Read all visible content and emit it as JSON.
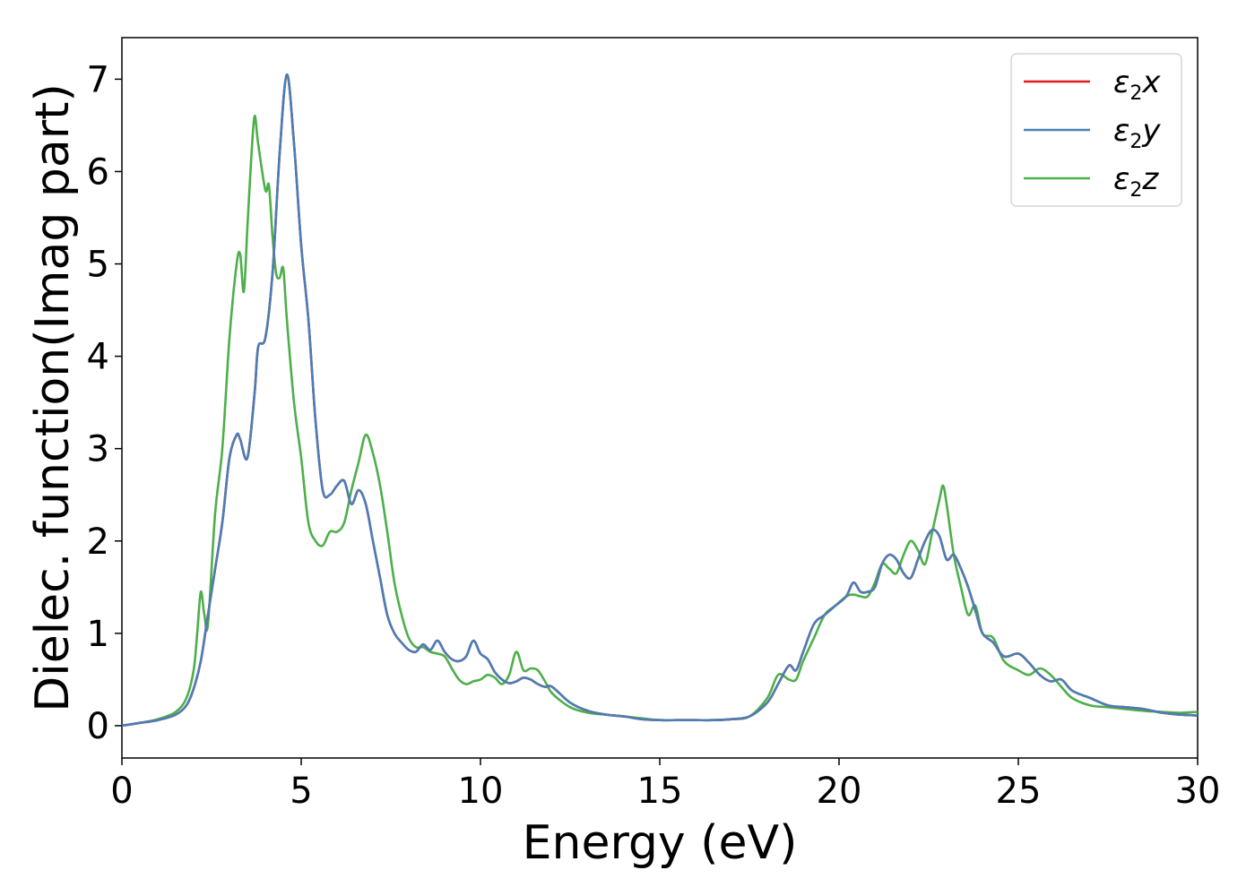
{
  "chart_data": {
    "type": "line",
    "title": "",
    "xlabel": "Energy (eV)",
    "ylabel": "Dielec. function(Imag part)",
    "xlim": [
      0,
      30
    ],
    "ylim": [
      -0.35,
      7.45
    ],
    "xticks": [
      0,
      5,
      10,
      15,
      20,
      25,
      30
    ],
    "yticks": [
      0,
      1,
      2,
      3,
      4,
      5,
      6,
      7
    ],
    "grid": false,
    "legend_position": "top-right",
    "series": [
      {
        "name": "ε2x",
        "legend": {
          "base": "ε",
          "sub": "2",
          "comp": "x"
        },
        "color": "#e41a1c",
        "x": [
          0,
          0.5,
          1,
          1.5,
          1.8,
          2,
          2.2,
          2.4,
          2.6,
          2.8,
          3,
          3.2,
          3.3,
          3.5,
          3.7,
          3.8,
          4,
          4.2,
          4.4,
          4.6,
          4.8,
          5,
          5.2,
          5.4,
          5.6,
          5.8,
          6,
          6.2,
          6.4,
          6.6,
          6.8,
          7,
          7.2,
          7.4,
          7.6,
          7.8,
          8,
          8.2,
          8.4,
          8.6,
          8.8,
          9,
          9.2,
          9.4,
          9.6,
          9.8,
          10,
          10.2,
          10.4,
          10.6,
          10.8,
          11,
          11.2,
          11.4,
          11.6,
          11.8,
          12,
          12.5,
          13,
          13.5,
          14,
          14.5,
          15,
          15.5,
          16,
          16.5,
          17,
          17.5,
          18,
          18.3,
          18.6,
          18.8,
          19,
          19.3,
          19.6,
          19.9,
          20.2,
          20.4,
          20.6,
          20.8,
          21,
          21.2,
          21.4,
          21.6,
          21.8,
          22,
          22.2,
          22.4,
          22.6,
          22.8,
          23,
          23.2,
          23.4,
          23.6,
          23.8,
          24,
          24.3,
          24.6,
          25,
          25.3,
          25.6,
          25.9,
          26.2,
          26.5,
          27,
          27.5,
          28,
          28.5,
          29,
          29.5,
          30
        ],
        "values": [
          0,
          0.03,
          0.06,
          0.12,
          0.22,
          0.4,
          0.7,
          1.2,
          1.7,
          2.2,
          2.9,
          3.15,
          3.1,
          2.9,
          3.6,
          4.1,
          4.2,
          4.9,
          6.2,
          7.05,
          6.3,
          5.2,
          4.4,
          3.3,
          2.55,
          2.5,
          2.6,
          2.65,
          2.4,
          2.55,
          2.4,
          2.0,
          1.6,
          1.2,
          1.0,
          0.9,
          0.82,
          0.8,
          0.88,
          0.82,
          0.92,
          0.8,
          0.72,
          0.7,
          0.75,
          0.92,
          0.78,
          0.72,
          0.58,
          0.5,
          0.46,
          0.48,
          0.52,
          0.5,
          0.45,
          0.42,
          0.42,
          0.25,
          0.16,
          0.12,
          0.1,
          0.07,
          0.06,
          0.06,
          0.06,
          0.06,
          0.07,
          0.1,
          0.25,
          0.45,
          0.65,
          0.6,
          0.8,
          1.1,
          1.2,
          1.3,
          1.4,
          1.55,
          1.45,
          1.45,
          1.5,
          1.75,
          1.85,
          1.8,
          1.65,
          1.6,
          1.8,
          2.0,
          2.12,
          2.05,
          1.8,
          1.85,
          1.7,
          1.5,
          1.25,
          1.0,
          0.9,
          0.75,
          0.78,
          0.68,
          0.55,
          0.48,
          0.5,
          0.38,
          0.3,
          0.22,
          0.2,
          0.18,
          0.14,
          0.12,
          0.11
        ]
      },
      {
        "name": "ε2y",
        "legend": {
          "base": "ε",
          "sub": "2",
          "comp": "y"
        },
        "color": "#4b7eb5",
        "x": [
          0,
          0.5,
          1,
          1.5,
          1.8,
          2,
          2.2,
          2.4,
          2.6,
          2.8,
          3,
          3.2,
          3.3,
          3.5,
          3.7,
          3.8,
          4,
          4.2,
          4.4,
          4.6,
          4.8,
          5,
          5.2,
          5.4,
          5.6,
          5.8,
          6,
          6.2,
          6.4,
          6.6,
          6.8,
          7,
          7.2,
          7.4,
          7.6,
          7.8,
          8,
          8.2,
          8.4,
          8.6,
          8.8,
          9,
          9.2,
          9.4,
          9.6,
          9.8,
          10,
          10.2,
          10.4,
          10.6,
          10.8,
          11,
          11.2,
          11.4,
          11.6,
          11.8,
          12,
          12.5,
          13,
          13.5,
          14,
          14.5,
          15,
          15.5,
          16,
          16.5,
          17,
          17.5,
          18,
          18.3,
          18.6,
          18.8,
          19,
          19.3,
          19.6,
          19.9,
          20.2,
          20.4,
          20.6,
          20.8,
          21,
          21.2,
          21.4,
          21.6,
          21.8,
          22,
          22.2,
          22.4,
          22.6,
          22.8,
          23,
          23.2,
          23.4,
          23.6,
          23.8,
          24,
          24.3,
          24.6,
          25,
          25.3,
          25.6,
          25.9,
          26.2,
          26.5,
          27,
          27.5,
          28,
          28.5,
          29,
          29.5,
          30
        ],
        "values": [
          0,
          0.03,
          0.06,
          0.12,
          0.22,
          0.4,
          0.7,
          1.2,
          1.7,
          2.2,
          2.9,
          3.15,
          3.1,
          2.9,
          3.6,
          4.1,
          4.2,
          4.9,
          6.2,
          7.05,
          6.3,
          5.2,
          4.4,
          3.3,
          2.55,
          2.5,
          2.6,
          2.65,
          2.4,
          2.55,
          2.4,
          2.0,
          1.6,
          1.2,
          1.0,
          0.9,
          0.82,
          0.8,
          0.88,
          0.82,
          0.92,
          0.8,
          0.72,
          0.7,
          0.75,
          0.92,
          0.78,
          0.72,
          0.58,
          0.5,
          0.46,
          0.48,
          0.52,
          0.5,
          0.45,
          0.42,
          0.42,
          0.25,
          0.16,
          0.12,
          0.1,
          0.07,
          0.06,
          0.06,
          0.06,
          0.06,
          0.07,
          0.1,
          0.25,
          0.45,
          0.65,
          0.6,
          0.8,
          1.1,
          1.2,
          1.3,
          1.4,
          1.55,
          1.45,
          1.45,
          1.5,
          1.75,
          1.85,
          1.8,
          1.65,
          1.6,
          1.8,
          2.0,
          2.12,
          2.05,
          1.8,
          1.85,
          1.7,
          1.5,
          1.25,
          1.0,
          0.9,
          0.75,
          0.78,
          0.68,
          0.55,
          0.48,
          0.5,
          0.38,
          0.3,
          0.22,
          0.2,
          0.18,
          0.14,
          0.12,
          0.11
        ]
      },
      {
        "name": "ε2z",
        "legend": {
          "base": "ε",
          "sub": "2",
          "comp": "z"
        },
        "color": "#4daf4a",
        "x": [
          0,
          0.5,
          1,
          1.5,
          1.8,
          2,
          2.1,
          2.2,
          2.3,
          2.4,
          2.6,
          2.8,
          3,
          3.2,
          3.3,
          3.4,
          3.5,
          3.6,
          3.7,
          3.8,
          4,
          4.1,
          4.2,
          4.3,
          4.4,
          4.5,
          4.6,
          4.8,
          5,
          5.2,
          5.4,
          5.6,
          5.8,
          6,
          6.2,
          6.4,
          6.6,
          6.8,
          7,
          7.2,
          7.4,
          7.6,
          7.8,
          8,
          8.2,
          8.4,
          8.6,
          8.8,
          9,
          9.2,
          9.4,
          9.6,
          9.8,
          10,
          10.2,
          10.4,
          10.6,
          10.8,
          11,
          11.2,
          11.4,
          11.6,
          11.8,
          12,
          12.5,
          13,
          13.5,
          14,
          14.5,
          15,
          15.5,
          16,
          16.5,
          17,
          17.5,
          18,
          18.3,
          18.6,
          18.8,
          19,
          19.3,
          19.6,
          19.9,
          20.2,
          20.4,
          20.6,
          20.8,
          21,
          21.2,
          21.4,
          21.6,
          21.8,
          22,
          22.2,
          22.4,
          22.6,
          22.8,
          22.9,
          23,
          23.2,
          23.4,
          23.6,
          23.8,
          24,
          24.3,
          24.6,
          25,
          25.3,
          25.6,
          25.9,
          26.2,
          26.5,
          27,
          27.5,
          28,
          28.5,
          29,
          29.5,
          30
        ],
        "values": [
          0,
          0.03,
          0.07,
          0.15,
          0.3,
          0.6,
          1.0,
          1.45,
          1.2,
          1.1,
          2.3,
          3.0,
          4.2,
          5.0,
          5.1,
          4.7,
          5.4,
          6.1,
          6.6,
          6.3,
          5.8,
          5.85,
          5.3,
          4.9,
          4.85,
          4.95,
          4.4,
          3.5,
          2.9,
          2.2,
          2.0,
          1.95,
          2.1,
          2.1,
          2.2,
          2.55,
          2.85,
          3.15,
          2.95,
          2.6,
          2.1,
          1.55,
          1.2,
          0.95,
          0.85,
          0.85,
          0.8,
          0.78,
          0.75,
          0.62,
          0.5,
          0.45,
          0.48,
          0.5,
          0.55,
          0.52,
          0.45,
          0.55,
          0.8,
          0.6,
          0.62,
          0.6,
          0.48,
          0.35,
          0.2,
          0.14,
          0.12,
          0.1,
          0.08,
          0.06,
          0.06,
          0.06,
          0.06,
          0.07,
          0.1,
          0.3,
          0.55,
          0.5,
          0.5,
          0.7,
          0.95,
          1.2,
          1.3,
          1.4,
          1.42,
          1.4,
          1.4,
          1.55,
          1.75,
          1.7,
          1.65,
          1.85,
          2.0,
          1.9,
          1.75,
          2.1,
          2.45,
          2.6,
          2.4,
          1.85,
          1.5,
          1.2,
          1.3,
          1.0,
          0.95,
          0.7,
          0.6,
          0.55,
          0.62,
          0.55,
          0.42,
          0.3,
          0.22,
          0.2,
          0.18,
          0.16,
          0.15,
          0.14,
          0.15
        ]
      }
    ]
  }
}
